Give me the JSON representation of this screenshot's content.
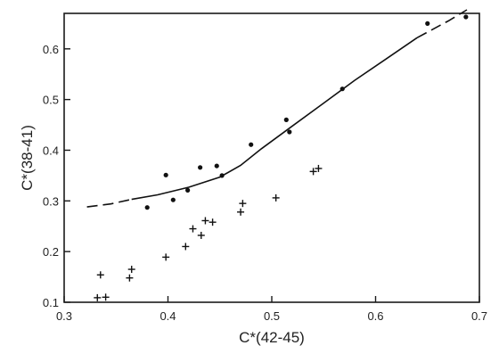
{
  "chart_data": {
    "type": "scatter",
    "xlabel": "C*(42-45)",
    "ylabel": "C*(38-41)",
    "xlim": [
      0.3,
      0.7
    ],
    "ylim": [
      0.1,
      0.67
    ],
    "xticks": [
      "0.3",
      "0.4",
      "0.5",
      "0.6",
      "0.7"
    ],
    "yticks": [
      "0.1",
      "0.2",
      "0.3",
      "0.4",
      "0.5",
      "0.6"
    ],
    "grid": false,
    "series": [
      {
        "marker": "dot",
        "points": [
          [
            0.38,
            0.287
          ],
          [
            0.398,
            0.351
          ],
          [
            0.405,
            0.302
          ],
          [
            0.419,
            0.321
          ],
          [
            0.431,
            0.366
          ],
          [
            0.447,
            0.369
          ],
          [
            0.452,
            0.35
          ],
          [
            0.48,
            0.411
          ],
          [
            0.514,
            0.46
          ],
          [
            0.517,
            0.436
          ],
          [
            0.568,
            0.521
          ],
          [
            0.65,
            0.65
          ],
          [
            0.687,
            0.663
          ]
        ]
      },
      {
        "marker": "plus",
        "points": [
          [
            0.332,
            0.109
          ],
          [
            0.34,
            0.11
          ],
          [
            0.335,
            0.154
          ],
          [
            0.363,
            0.148
          ],
          [
            0.365,
            0.165
          ],
          [
            0.398,
            0.189
          ],
          [
            0.417,
            0.21
          ],
          [
            0.424,
            0.245
          ],
          [
            0.432,
            0.232
          ],
          [
            0.436,
            0.261
          ],
          [
            0.443,
            0.258
          ],
          [
            0.47,
            0.278
          ],
          [
            0.472,
            0.295
          ],
          [
            0.504,
            0.306
          ],
          [
            0.54,
            0.358
          ],
          [
            0.545,
            0.364
          ]
        ]
      }
    ],
    "fit_curve": {
      "line_style": "solid",
      "points": [
        [
          0.365,
          0.303
        ],
        [
          0.39,
          0.312
        ],
        [
          0.42,
          0.327
        ],
        [
          0.45,
          0.347
        ],
        [
          0.47,
          0.37
        ],
        [
          0.49,
          0.403
        ],
        [
          0.52,
          0.448
        ],
        [
          0.55,
          0.493
        ],
        [
          0.58,
          0.538
        ],
        [
          0.61,
          0.58
        ],
        [
          0.64,
          0.622
        ]
      ],
      "extension_left": [
        [
          0.322,
          0.288
        ],
        [
          0.345,
          0.294
        ],
        [
          0.365,
          0.303
        ]
      ],
      "extension_right": [
        [
          0.64,
          0.622
        ],
        [
          0.67,
          0.655
        ],
        [
          0.688,
          0.677
        ]
      ]
    }
  }
}
